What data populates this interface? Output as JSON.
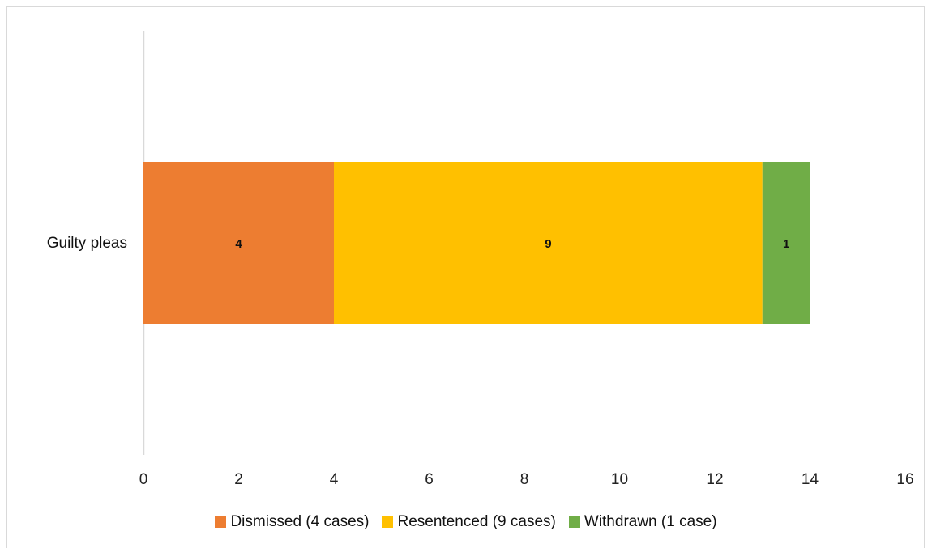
{
  "chart_data": {
    "type": "bar",
    "orientation": "horizontal",
    "stacked": true,
    "categories": [
      "Guilty pleas"
    ],
    "series": [
      {
        "name": "Dismissed (4 cases)",
        "values": [
          4
        ],
        "color": "#ED7D31",
        "data_label": "4"
      },
      {
        "name": "Resentenced (9 cases)",
        "values": [
          9
        ],
        "color": "#FFC000",
        "data_label": "9"
      },
      {
        "name": "Withdrawn (1 case)",
        "values": [
          1
        ],
        "color": "#70AD47",
        "data_label": "1"
      }
    ],
    "xlim": [
      0,
      16
    ],
    "x_ticks": [
      "0",
      "2",
      "4",
      "6",
      "8",
      "10",
      "12",
      "14",
      "16"
    ],
    "grid": false,
    "legend_position": "bottom"
  }
}
